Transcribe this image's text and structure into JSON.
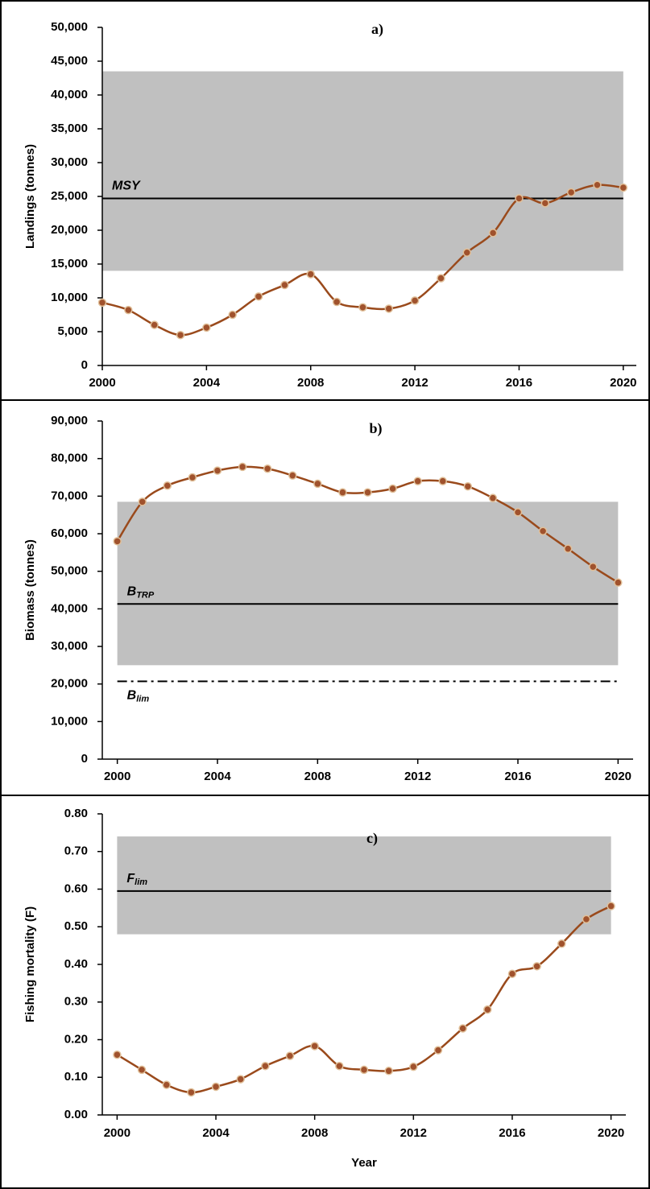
{
  "chart_data": [
    {
      "type": "line",
      "title": "a)",
      "y_label": "Landings (tonnes)",
      "x": [
        2000,
        2001,
        2002,
        2003,
        2004,
        2005,
        2006,
        2007,
        2008,
        2009,
        2010,
        2011,
        2012,
        2013,
        2014,
        2015,
        2016,
        2017,
        2018,
        2019,
        2020
      ],
      "values": [
        9300,
        8200,
        6000,
        4500,
        5600,
        7500,
        10200,
        11900,
        13500,
        9400,
        8600,
        8400,
        9600,
        12900,
        16700,
        19600,
        24700,
        24000,
        25600,
        26700,
        26300
      ],
      "color": "#9a4a1c",
      "marker_color": "#a0522d",
      "band": [
        14000,
        43500
      ],
      "band_color": "#c0c0c0",
      "reference_lines": [
        {
          "name": "MSY",
          "value": 24700,
          "style": "solid",
          "label_side": "above"
        }
      ],
      "xlim": [
        2000,
        2020.5
      ],
      "xticks": [
        2000,
        2004,
        2008,
        2012,
        2016,
        2020
      ],
      "ylim": [
        0,
        50000
      ],
      "yticks": [
        0,
        {
          "value": 5000,
          "label": "5,000"
        },
        {
          "value": 10000,
          "label": "10,000"
        },
        {
          "value": 15000,
          "label": "15,000"
        },
        {
          "value": 20000,
          "label": "20,000"
        },
        {
          "value": 25000,
          "label": "25,000"
        },
        {
          "value": 30000,
          "label": "30,000"
        },
        {
          "value": 35000,
          "label": "35,000"
        },
        {
          "value": 40000,
          "label": "40,000"
        },
        {
          "value": 45000,
          "label": "45,000"
        },
        {
          "value": 50000,
          "label": "50,000"
        }
      ]
    },
    {
      "type": "line",
      "title": "b)",
      "y_label": "Biomass (tonnes)",
      "x": [
        2000,
        2001,
        2002,
        2003,
        2004,
        2005,
        2006,
        2007,
        2008,
        2009,
        2010,
        2011,
        2012,
        2013,
        2014,
        2015,
        2016,
        2017,
        2018,
        2019,
        2020
      ],
      "values": [
        58000,
        68500,
        72800,
        75000,
        76800,
        77800,
        77300,
        75500,
        73300,
        71000,
        71000,
        72000,
        74000,
        74000,
        72600,
        69500,
        65700,
        60700,
        56000,
        51200,
        47000
      ],
      "color": "#9a4a1c",
      "marker_color": "#a0522d",
      "band": [
        25000,
        68500
      ],
      "band_color": "#c0c0c0",
      "reference_lines": [
        {
          "name": "B",
          "subscript": "TRP",
          "value": 41300,
          "style": "solid",
          "label_side": "above"
        },
        {
          "name": "B",
          "subscript": "lim",
          "value": 20700,
          "style": "dashdot",
          "label_side": "below"
        }
      ],
      "xlim": [
        1999.4,
        2020.6
      ],
      "xticks": [
        2000,
        2004,
        2008,
        2012,
        2016,
        2020
      ],
      "ylim": [
        0,
        90000
      ],
      "yticks": [
        0,
        {
          "value": 10000,
          "label": "10,000"
        },
        {
          "value": 20000,
          "label": "20,000"
        },
        {
          "value": 30000,
          "label": "30,000"
        },
        {
          "value": 40000,
          "label": "40,000"
        },
        {
          "value": 50000,
          "label": "50,000"
        },
        {
          "value": 60000,
          "label": "60,000"
        },
        {
          "value": 70000,
          "label": "70,000"
        },
        {
          "value": 80000,
          "label": "80,000"
        },
        {
          "value": 90000,
          "label": "90,000"
        }
      ]
    },
    {
      "type": "line",
      "title": "c)",
      "y_label": "Fishing mortality (F)",
      "x_label": "Year",
      "x": [
        2000,
        2001,
        2002,
        2003,
        2004,
        2005,
        2006,
        2007,
        2008,
        2009,
        2010,
        2011,
        2012,
        2013,
        2014,
        2015,
        2016,
        2017,
        2018,
        2019,
        2020
      ],
      "values": [
        0.16,
        0.12,
        0.08,
        0.06,
        0.075,
        0.095,
        0.13,
        0.157,
        0.183,
        0.13,
        0.12,
        0.117,
        0.128,
        0.172,
        0.23,
        0.28,
        0.375,
        0.395,
        0.455,
        0.52,
        0.555
      ],
      "color": "#9a4a1c",
      "marker_color": "#a0522d",
      "band": [
        0.48,
        0.74
      ],
      "band_color": "#c0c0c0",
      "reference_lines": [
        {
          "name": "F",
          "subscript": "lim",
          "value": 0.595,
          "style": "solid",
          "label_side": "above"
        }
      ],
      "xlim": [
        1999.4,
        2020.6
      ],
      "xticks": [
        2000,
        2004,
        2008,
        2012,
        2016,
        2020
      ],
      "ylim": [
        0,
        0.8
      ],
      "yticks": [
        {
          "value": 0,
          "label": "0.00"
        },
        {
          "value": 0.1,
          "label": "0.10"
        },
        {
          "value": 0.2,
          "label": "0.20"
        },
        {
          "value": 0.3,
          "label": "0.30"
        },
        {
          "value": 0.4,
          "label": "0.40"
        },
        {
          "value": 0.5,
          "label": "0.50"
        },
        {
          "value": 0.6,
          "label": "0.60"
        },
        {
          "value": 0.7,
          "label": "0.70"
        },
        {
          "value": 0.8,
          "label": "0.80"
        }
      ]
    }
  ]
}
